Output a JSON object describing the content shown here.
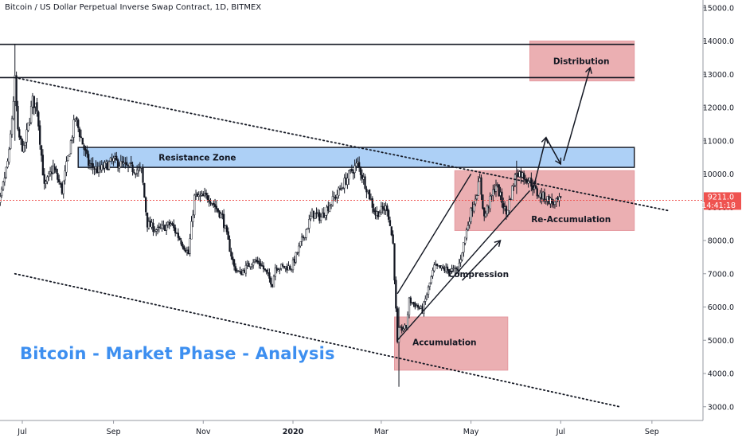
{
  "header": {
    "symbol_title": "Bitcoin / US Dollar Perpetual Inverse Swap Contract, 1D, BITMEX"
  },
  "overlay_title": "Bitcoin - Market Phase - Analysis",
  "price_label": {
    "value": "9211.0",
    "countdown": "14:41:18"
  },
  "colors": {
    "up_candle": "#131722",
    "down_candle": "#131722",
    "resistance_fill": "#a9cdf6",
    "zone_fill": "#e8a1a5",
    "title_color": "#3d8ff0",
    "price_line": "#ef5350"
  },
  "chart_data": {
    "type": "candlestick",
    "title": "Bitcoin / US Dollar Perpetual Inverse Swap Contract, 1D, BITMEX",
    "ylim": [
      2800,
      15400
    ],
    "y_ticks": [
      3000,
      4000,
      5000,
      6000,
      7000,
      8000,
      9000,
      10000,
      11000,
      12000,
      13000,
      14000,
      15000
    ],
    "y_tick_labels": [
      "3000.0",
      "4000.0",
      "5000.0",
      "6000.0",
      "7000.0",
      "8000.0",
      "9000.0",
      "10000.0",
      "11000.0",
      "12000.0",
      "13000.0",
      "14000.0",
      "15000.0"
    ],
    "x_tick_labels": [
      {
        "label": "Jul",
        "date": "2019-07-01"
      },
      {
        "label": "Sep",
        "date": "2019-09-01"
      },
      {
        "label": "Nov",
        "date": "2019-11-01"
      },
      {
        "label": "2020",
        "date": "2020-01-01"
      },
      {
        "label": "Mar",
        "date": "2020-03-01"
      },
      {
        "label": "May",
        "date": "2020-05-01"
      },
      {
        "label": "Jul",
        "date": "2020-07-01"
      },
      {
        "label": "Sep",
        "date": "2020-09-01"
      }
    ],
    "x_range": [
      "2019-06-10",
      "2020-09-30"
    ],
    "close_path": [
      [
        "2019-06-10",
        8100
      ],
      [
        "2019-06-16",
        9200
      ],
      [
        "2019-06-22",
        10600
      ],
      [
        "2019-06-26",
        12800
      ],
      [
        "2019-06-28",
        11200
      ],
      [
        "2019-07-02",
        10700
      ],
      [
        "2019-07-08",
        12200
      ],
      [
        "2019-07-11",
        12000
      ],
      [
        "2019-07-16",
        9600
      ],
      [
        "2019-07-22",
        10200
      ],
      [
        "2019-07-28",
        9500
      ],
      [
        "2019-08-06",
        11700
      ],
      [
        "2019-08-15",
        10300
      ],
      [
        "2019-08-22",
        10100
      ],
      [
        "2019-09-01",
        10400
      ],
      [
        "2019-09-10",
        10200
      ],
      [
        "2019-09-20",
        10100
      ],
      [
        "2019-09-24",
        8500
      ],
      [
        "2019-10-01",
        8300
      ],
      [
        "2019-10-10",
        8500
      ],
      [
        "2019-10-22",
        7600
      ],
      [
        "2019-10-26",
        9300
      ],
      [
        "2019-11-05",
        9300
      ],
      [
        "2019-11-14",
        8700
      ],
      [
        "2019-11-22",
        7200
      ],
      [
        "2019-11-26",
        7000
      ],
      [
        "2019-12-05",
        7400
      ],
      [
        "2019-12-10",
        7300
      ],
      [
        "2019-12-18",
        6700
      ],
      [
        "2019-12-20",
        7200
      ],
      [
        "2019-12-31",
        7200
      ],
      [
        "2020-01-08",
        8100
      ],
      [
        "2020-01-14",
        8800
      ],
      [
        "2020-01-20",
        8700
      ],
      [
        "2020-01-31",
        9400
      ],
      [
        "2020-02-10",
        10100
      ],
      [
        "2020-02-14",
        10300
      ],
      [
        "2020-02-20",
        9600
      ],
      [
        "2020-02-26",
        8800
      ],
      [
        "2020-03-05",
        9000
      ],
      [
        "2020-03-09",
        7900
      ],
      [
        "2020-03-12",
        4900
      ],
      [
        "2020-03-13",
        5300
      ],
      [
        "2020-03-18",
        5400
      ],
      [
        "2020-03-20",
        6200
      ],
      [
        "2020-03-29",
        5900
      ],
      [
        "2020-04-06",
        7200
      ],
      [
        "2020-04-16",
        7100
      ],
      [
        "2020-04-22",
        7100
      ],
      [
        "2020-04-30",
        8700
      ],
      [
        "2020-05-07",
        9800
      ],
      [
        "2020-05-10",
        8700
      ],
      [
        "2020-05-18",
        9700
      ],
      [
        "2020-05-25",
        8800
      ],
      [
        "2020-06-01",
        10100
      ],
      [
        "2020-06-10",
        9800
      ],
      [
        "2020-06-15",
        9400
      ],
      [
        "2020-06-20",
        9300
      ],
      [
        "2020-06-27",
        9100
      ],
      [
        "2020-07-01",
        9211
      ]
    ],
    "wick_extremes": [
      {
        "date": "2019-06-26",
        "high": 13900,
        "low": 11000
      },
      {
        "date": "2020-03-13",
        "high": 6000,
        "low": 3600
      },
      {
        "date": "2020-06-01",
        "high": 10400,
        "low": 9400
      }
    ],
    "horizontal_lines": [
      13900,
      12900
    ],
    "current_price_line": 9211,
    "trendlines": [
      {
        "style": "dotted",
        "from": [
          "2019-06-26",
          12900
        ],
        "to": [
          "2020-09-12",
          8900
        ]
      },
      {
        "style": "dotted",
        "from": [
          "2019-06-26",
          7000
        ],
        "to": [
          "2020-08-10",
          3000
        ]
      },
      {
        "style": "solid",
        "from": [
          "2020-03-12",
          6400
        ],
        "to": [
          "2020-05-01",
          10000
        ]
      },
      {
        "style": "solid",
        "from": [
          "2020-03-12",
          5000
        ],
        "to": [
          "2020-06-10",
          9500
        ]
      }
    ],
    "zones": [
      {
        "label": "Resistance Zone",
        "from": "2019-08-08",
        "to": "2020-08-20",
        "low": 10200,
        "high": 10800,
        "color": "blue"
      },
      {
        "label": "Distribution",
        "from": "2020-06-10",
        "to": "2020-08-20",
        "low": 12800,
        "high": 14000,
        "color": "red"
      },
      {
        "label": "Re-Accumulation",
        "from": "2020-04-20",
        "to": "2020-08-20",
        "low": 8300,
        "high": 10100,
        "color": "red"
      },
      {
        "label": "Accumulation",
        "from": "2020-03-10",
        "to": "2020-05-26",
        "low": 4100,
        "high": 5700,
        "color": "red"
      }
    ],
    "annotations": [
      {
        "text": "Compression",
        "date": "2020-05-06",
        "price": 7000
      },
      {
        "text": "Distribution",
        "date": "2020-07-15",
        "price": 13400
      },
      {
        "text": "Resistance Zone",
        "date": "2019-10-28",
        "price": 10500
      },
      {
        "text": "Re-Accumulation",
        "date": "2020-07-08",
        "price": 8650
      },
      {
        "text": "Accumulation",
        "date": "2020-04-13",
        "price": 4950
      }
    ],
    "arrows": [
      {
        "from": [
          "2020-04-25",
          6800
        ],
        "to": [
          "2020-05-21",
          8000
        ]
      },
      {
        "from": [
          "2020-06-12",
          9500
        ],
        "to": [
          "2020-06-21",
          11100
        ]
      },
      {
        "from": [
          "2020-06-21",
          11100
        ],
        "to": [
          "2020-07-01",
          10300
        ]
      },
      {
        "from": [
          "2020-07-03",
          10400
        ],
        "to": [
          "2020-07-21",
          13200
        ]
      }
    ]
  }
}
